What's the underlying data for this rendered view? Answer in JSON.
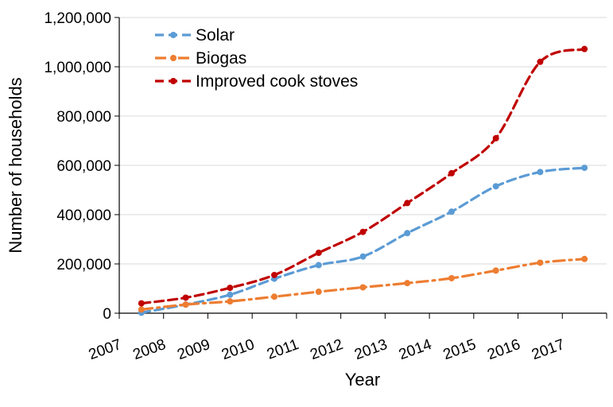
{
  "chart_data": {
    "type": "line",
    "title": "",
    "xlabel": "Year",
    "ylabel": "Number of households",
    "x": [
      "2007",
      "2008",
      "2009",
      "2010",
      "2011",
      "2012",
      "2013",
      "2014",
      "2015",
      "2016",
      "2017"
    ],
    "ylim": [
      0,
      1200000
    ],
    "yticks": [
      "0",
      "200,000",
      "400,000",
      "600,000",
      "800,000",
      "1,000,000",
      "1,200,000"
    ],
    "grid": true,
    "legend_position": "top-left",
    "series": [
      {
        "name": "Solar",
        "color": "#5B9BD5",
        "style": "dashed",
        "values": [
          2000,
          35000,
          75000,
          140000,
          195000,
          230000,
          325000,
          412000,
          515000,
          573000,
          590000
        ]
      },
      {
        "name": "Biogas",
        "color": "#ED7D31",
        "style": "dash-dot",
        "values": [
          15000,
          35000,
          48000,
          67000,
          87000,
          105000,
          122000,
          142000,
          173000,
          205000,
          220000
        ]
      },
      {
        "name": "Improved cook stoves",
        "color": "#C00000",
        "style": "dashed",
        "values": [
          40000,
          63000,
          103000,
          155000,
          245000,
          330000,
          447000,
          568000,
          710000,
          1020000,
          1072000
        ]
      }
    ]
  }
}
